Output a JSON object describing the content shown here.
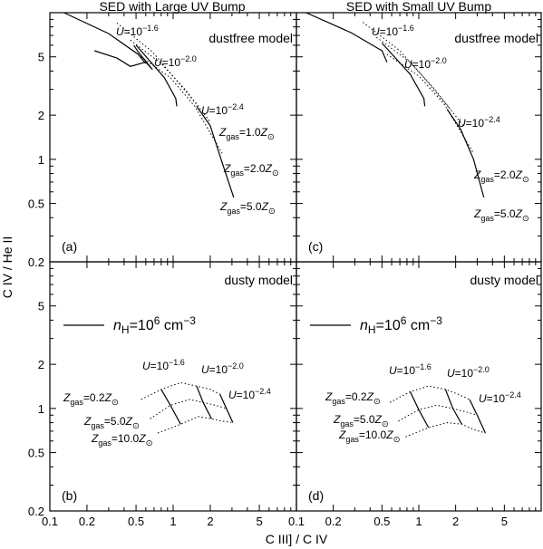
{
  "figure": {
    "xlabel": "C III] / C IV",
    "ylabel": "C IV / He II",
    "titles": [
      "SED with Large UV Bump",
      "SED with Small UV Bump"
    ]
  },
  "chart_data": [
    {
      "panel": "(a)",
      "type": "line",
      "scale": "log-log",
      "title": "SED with Large UV Bump",
      "model_label": "dustfree model",
      "xlim": [
        0.1,
        10
      ],
      "ylim": [
        0.2,
        10
      ],
      "x_ticks": [
        0.1,
        0.2,
        0.5,
        1,
        2,
        5
      ],
      "y_ticks": [
        0.2,
        0.5,
        1,
        2,
        5
      ],
      "series": [
        {
          "name": "U=10^-1.6",
          "style": "solid",
          "points": [
            [
              0.13,
              10
            ],
            [
              0.3,
              7.2
            ],
            [
              0.52,
              5.2
            ],
            [
              0.6,
              4.5
            ]
          ]
        },
        {
          "name": "U=10^-2.0",
          "style": "solid",
          "points": [
            [
              0.5,
              6.0
            ],
            [
              0.85,
              3.6
            ],
            [
              1.05,
              2.6
            ],
            [
              1.07,
              2.3
            ]
          ]
        },
        {
          "name": "U=10^-2.4",
          "style": "solid",
          "points": [
            [
              1.55,
              2.3
            ],
            [
              2.0,
              1.7
            ],
            [
              2.45,
              1.0
            ],
            [
              3.1,
              0.55
            ]
          ]
        },
        {
          "name": "U=10^-1.6 lower loop",
          "style": "solid",
          "points": [
            [
              0.23,
              5.5
            ],
            [
              0.35,
              4.9
            ],
            [
              0.45,
              4.3
            ],
            [
              0.6,
              4.6
            ],
            [
              0.68,
              4.1
            ],
            [
              0.52,
              5.4
            ],
            [
              0.48,
              6.0
            ]
          ]
        },
        {
          "name": "Z=1.0",
          "style": "dotted",
          "points": [
            [
              0.35,
              8.5
            ],
            [
              0.68,
              5.4
            ],
            [
              1.05,
              3.5
            ],
            [
              1.6,
              2.3
            ]
          ]
        },
        {
          "name": "Z=2.0",
          "style": "dotted",
          "points": [
            [
              0.45,
              6.5
            ],
            [
              0.8,
              4.5
            ],
            [
              1.25,
              3.0
            ],
            [
              2.0,
              1.8
            ]
          ]
        },
        {
          "name": "Z=5.0",
          "style": "dotted",
          "points": [
            [
              0.55,
              5.0
            ],
            [
              0.95,
              3.6
            ],
            [
              1.5,
              2.3
            ],
            [
              2.5,
              1.1
            ]
          ]
        }
      ],
      "labels": {
        "u1": "U=10^-1.6",
        "u2": "U=10^-2.0",
        "u3": "U=10^-2.4",
        "z1": "Z_gas=1.0Z_sun",
        "z2": "Z_gas=2.0Z_sun",
        "z3": "Z_gas=5.0Z_sun"
      }
    },
    {
      "panel": "(c)",
      "type": "line",
      "scale": "log-log",
      "title": "SED with Small UV Bump",
      "model_label": "dustfree model",
      "xlim": [
        0.1,
        10
      ],
      "ylim": [
        0.2,
        10
      ],
      "series": [
        {
          "name": "U=10^-1.6",
          "style": "solid",
          "points": [
            [
              0.12,
              10
            ],
            [
              0.28,
              7.3
            ],
            [
              0.5,
              5.5
            ],
            [
              0.55,
              4.6
            ]
          ]
        },
        {
          "name": "U=10^-2.0",
          "style": "solid",
          "points": [
            [
              0.5,
              6.2
            ],
            [
              0.85,
              3.8
            ],
            [
              1.1,
              2.6
            ],
            [
              1.12,
              2.3
            ]
          ]
        },
        {
          "name": "U=10^-2.4",
          "style": "solid",
          "points": [
            [
              1.7,
              2.2
            ],
            [
              2.2,
              1.6
            ],
            [
              2.8,
              1.0
            ],
            [
              3.4,
              0.55
            ]
          ]
        },
        {
          "name": "Z=1.0",
          "style": "dotted",
          "points": [
            [
              0.35,
              8.6
            ],
            [
              0.7,
              5.5
            ],
            [
              1.1,
              3.6
            ],
            [
              1.8,
              2.2
            ]
          ]
        },
        {
          "name": "Z=2.0",
          "style": "dotted",
          "points": [
            [
              0.45,
              6.8
            ],
            [
              0.85,
              4.6
            ],
            [
              1.35,
              3.0
            ],
            [
              2.3,
              1.7
            ]
          ]
        },
        {
          "name": "Z=5.0",
          "style": "dotted",
          "points": [
            [
              0.55,
              5.2
            ],
            [
              1.0,
              3.7
            ],
            [
              1.6,
              2.4
            ],
            [
              2.8,
              1.1
            ]
          ]
        }
      ],
      "labels": {
        "u1": "U=10^-1.6",
        "u2": "U=10^-2.0",
        "u3": "U=10^-2.4",
        "z2": "Z_gas=2.0Z_sun",
        "z3": "Z_gas=5.0Z_sun"
      }
    },
    {
      "panel": "(b)",
      "type": "line",
      "scale": "log-log",
      "model_label": "dusty model",
      "density_label": "n_H=10^6 cm^-3",
      "xlim": [
        0.1,
        10
      ],
      "ylim": [
        0.2,
        10
      ],
      "series": [
        {
          "name": "U=10^-1.6",
          "style": "solid",
          "points": [
            [
              0.8,
              1.35
            ],
            [
              0.95,
              1.05
            ],
            [
              1.15,
              0.78
            ]
          ]
        },
        {
          "name": "U=10^-2.0",
          "style": "solid",
          "points": [
            [
              1.55,
              1.42
            ],
            [
              1.75,
              1.1
            ],
            [
              2.05,
              0.85
            ]
          ]
        },
        {
          "name": "U=10^-2.4",
          "style": "solid",
          "points": [
            [
              2.4,
              1.25
            ],
            [
              2.7,
              1.0
            ],
            [
              3.05,
              0.8
            ]
          ]
        },
        {
          "name": "Z=0.2",
          "style": "dotted",
          "points": [
            [
              0.55,
              1.15
            ],
            [
              0.8,
              1.35
            ],
            [
              1.15,
              1.5
            ],
            [
              1.55,
              1.42
            ],
            [
              2.0,
              1.35
            ],
            [
              2.4,
              1.25
            ]
          ]
        },
        {
          "name": "Z=5.0",
          "style": "dotted",
          "points": [
            [
              0.65,
              0.85
            ],
            [
              0.95,
              1.05
            ],
            [
              1.35,
              1.15
            ],
            [
              1.75,
              1.1
            ],
            [
              2.2,
              1.05
            ],
            [
              2.7,
              1.0
            ]
          ]
        },
        {
          "name": "Z=10.0",
          "style": "dotted",
          "points": [
            [
              0.75,
              0.68
            ],
            [
              1.15,
              0.78
            ],
            [
              1.6,
              0.88
            ],
            [
              2.05,
              0.85
            ],
            [
              2.5,
              0.82
            ],
            [
              3.05,
              0.8
            ]
          ]
        }
      ],
      "labels": {
        "u1": "U=10^-1.6",
        "u2": "U=10^-2.0",
        "u3": "U=10^-2.4",
        "z1": "Z_gas=0.2Z_sun",
        "z2": "Z_gas=5.0Z_sun",
        "z3": "Z_gas=10.0Z_sun"
      }
    },
    {
      "panel": "(d)",
      "type": "line",
      "scale": "log-log",
      "model_label": "dusty model",
      "density_label": "n_H=10^6 cm^-3",
      "xlim": [
        0.1,
        10
      ],
      "ylim": [
        0.2,
        10
      ],
      "series": [
        {
          "name": "U=10^-1.6",
          "style": "solid",
          "points": [
            [
              0.85,
              1.3
            ],
            [
              1.0,
              0.98
            ],
            [
              1.2,
              0.74
            ]
          ]
        },
        {
          "name": "U=10^-2.0",
          "style": "solid",
          "points": [
            [
              1.65,
              1.35
            ],
            [
              1.9,
              1.0
            ],
            [
              2.25,
              0.78
            ]
          ]
        },
        {
          "name": "U=10^-2.4",
          "style": "solid",
          "points": [
            [
              2.6,
              1.15
            ],
            [
              3.0,
              0.9
            ],
            [
              3.5,
              0.68
            ]
          ]
        },
        {
          "name": "Z=0.2",
          "style": "dotted",
          "points": [
            [
              0.58,
              1.1
            ],
            [
              0.85,
              1.3
            ],
            [
              1.2,
              1.42
            ],
            [
              1.65,
              1.35
            ],
            [
              2.1,
              1.25
            ],
            [
              2.6,
              1.15
            ]
          ]
        },
        {
          "name": "Z=5.0",
          "style": "dotted",
          "points": [
            [
              0.68,
              0.82
            ],
            [
              1.0,
              0.98
            ],
            [
              1.4,
              1.05
            ],
            [
              1.9,
              1.0
            ],
            [
              2.4,
              0.95
            ],
            [
              3.0,
              0.9
            ]
          ]
        },
        {
          "name": "Z=10.0",
          "style": "dotted",
          "points": [
            [
              0.78,
              0.64
            ],
            [
              1.2,
              0.74
            ],
            [
              1.7,
              0.8
            ],
            [
              2.25,
              0.78
            ],
            [
              2.8,
              0.72
            ],
            [
              3.5,
              0.68
            ]
          ]
        }
      ],
      "labels": {
        "u1": "U=10^-1.6",
        "u2": "U=10^-2.0",
        "u3": "U=10^-2.4",
        "z1": "Z_gas=0.2Z_sun",
        "z2": "Z_gas=5.0Z_sun",
        "z3": "Z_gas=10.0Z_sun"
      }
    }
  ]
}
